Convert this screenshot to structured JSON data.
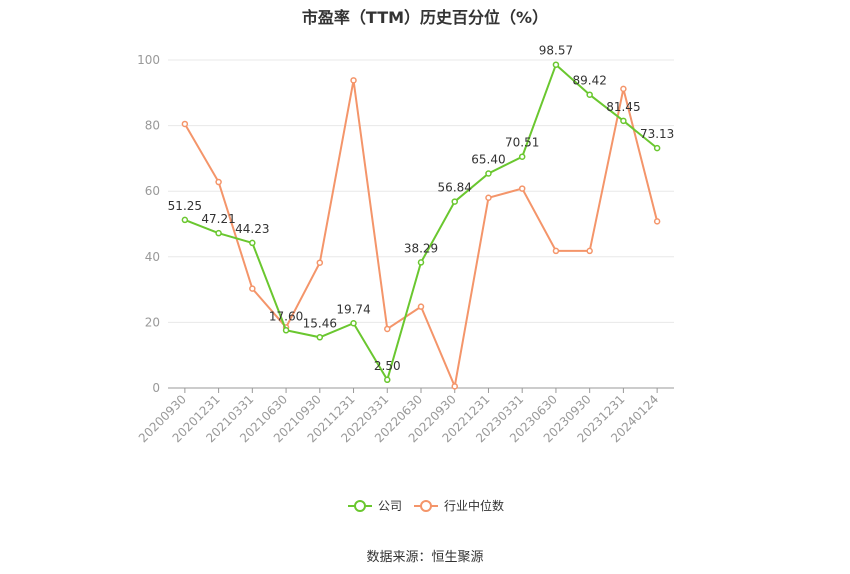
{
  "chart_data": {
    "type": "line",
    "title": "市盈率（TTM）历史百分位（%）",
    "categories": [
      "20200930",
      "20201231",
      "20210331",
      "20210630",
      "20210930",
      "20211231",
      "20220331",
      "20220630",
      "20220930",
      "20221231",
      "20230331",
      "20230630",
      "20230930",
      "20231231",
      "20240124"
    ],
    "series": [
      {
        "name": "公司",
        "color": "#6ac72f",
        "values": [
          51.25,
          47.21,
          44.23,
          17.6,
          15.46,
          19.74,
          2.5,
          38.29,
          56.84,
          65.4,
          70.51,
          98.57,
          89.42,
          81.45,
          73.13
        ],
        "labels": [
          "51.25",
          "47.21",
          "44.23",
          "17.60",
          "15.46",
          "19.74",
          "2.50",
          "38.29",
          "56.84",
          "65.40",
          "70.51",
          "98.57",
          "89.42",
          "81.45",
          "73.13"
        ]
      },
      {
        "name": "行业中位数",
        "color": "#f4956a",
        "values": [
          80.5,
          62.8,
          30.3,
          18.5,
          38.2,
          93.8,
          18.0,
          24.8,
          0.5,
          58.0,
          60.8,
          41.8,
          41.8,
          91.2,
          50.8
        ]
      }
    ],
    "y_ticks": [
      "0",
      "20",
      "40",
      "60",
      "80",
      "100"
    ],
    "ylim": [
      0,
      100
    ],
    "grid": true,
    "legend_position": "bottom"
  },
  "source": "数据来源：恒生聚源"
}
